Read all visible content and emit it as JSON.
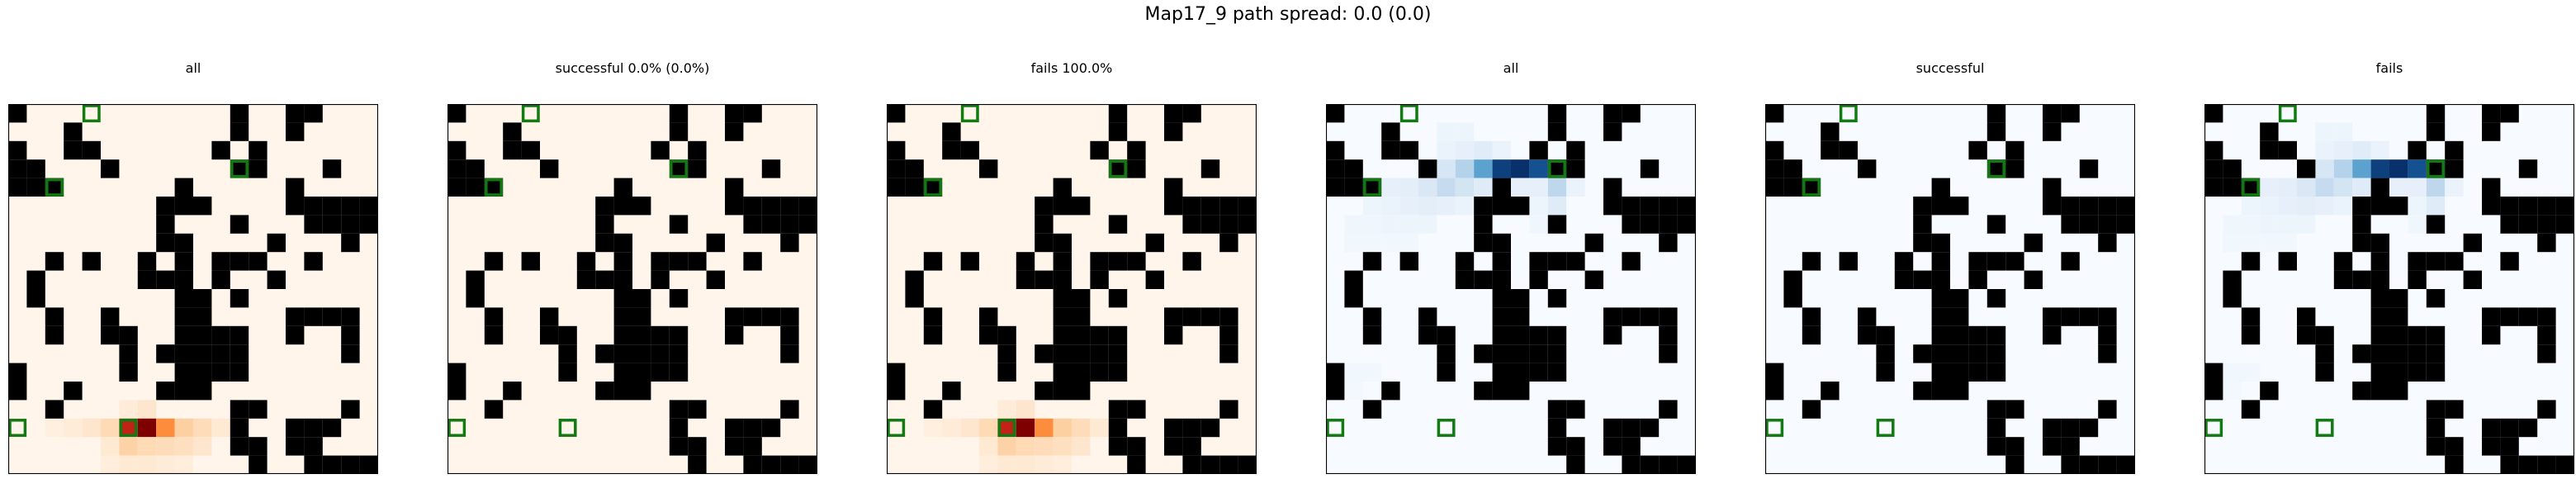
{
  "figure": {
    "title": "Map17_9 path spread: 0.0 (0.0)"
  },
  "colors": {
    "wall": "#000000",
    "marker": "#117a11",
    "oranges_low": "#fff5eb",
    "oranges_high": "#7f0000",
    "blues_low": "#f7fbff",
    "blues_high": "#08306b"
  },
  "chart_data": {
    "type": "heatmap",
    "grid_size": 20,
    "walls": [
      [
        0,
        0
      ],
      [
        0,
        12
      ],
      [
        0,
        15
      ],
      [
        0,
        16
      ],
      [
        1,
        3
      ],
      [
        1,
        12
      ],
      [
        1,
        15
      ],
      [
        2,
        0
      ],
      [
        2,
        3
      ],
      [
        2,
        4
      ],
      [
        2,
        11
      ],
      [
        2,
        13
      ],
      [
        3,
        0
      ],
      [
        3,
        1
      ],
      [
        3,
        5
      ],
      [
        3,
        12
      ],
      [
        3,
        13
      ],
      [
        3,
        17
      ],
      [
        4,
        0
      ],
      [
        4,
        1
      ],
      [
        4,
        2
      ],
      [
        4,
        9
      ],
      [
        4,
        15
      ],
      [
        5,
        8
      ],
      [
        5,
        9
      ],
      [
        5,
        10
      ],
      [
        5,
        15
      ],
      [
        5,
        16
      ],
      [
        5,
        17
      ],
      [
        5,
        18
      ],
      [
        5,
        19
      ],
      [
        6,
        8
      ],
      [
        6,
        12
      ],
      [
        6,
        16
      ],
      [
        6,
        17
      ],
      [
        6,
        18
      ],
      [
        6,
        19
      ],
      [
        7,
        8
      ],
      [
        7,
        9
      ],
      [
        7,
        14
      ],
      [
        7,
        18
      ],
      [
        8,
        2
      ],
      [
        8,
        4
      ],
      [
        8,
        7
      ],
      [
        8,
        9
      ],
      [
        8,
        11
      ],
      [
        8,
        12
      ],
      [
        8,
        13
      ],
      [
        8,
        16
      ],
      [
        9,
        1
      ],
      [
        9,
        7
      ],
      [
        9,
        8
      ],
      [
        9,
        9
      ],
      [
        9,
        11
      ],
      [
        9,
        14
      ],
      [
        10,
        1
      ],
      [
        10,
        9
      ],
      [
        10,
        10
      ],
      [
        10,
        12
      ],
      [
        11,
        2
      ],
      [
        11,
        5
      ],
      [
        11,
        9
      ],
      [
        11,
        10
      ],
      [
        11,
        15
      ],
      [
        11,
        16
      ],
      [
        11,
        17
      ],
      [
        11,
        18
      ],
      [
        12,
        2
      ],
      [
        12,
        5
      ],
      [
        12,
        6
      ],
      [
        12,
        9
      ],
      [
        12,
        10
      ],
      [
        12,
        11
      ],
      [
        12,
        12
      ],
      [
        12,
        15
      ],
      [
        12,
        18
      ],
      [
        13,
        6
      ],
      [
        13,
        8
      ],
      [
        13,
        9
      ],
      [
        13,
        10
      ],
      [
        13,
        11
      ],
      [
        13,
        12
      ],
      [
        13,
        18
      ],
      [
        14,
        0
      ],
      [
        14,
        6
      ],
      [
        14,
        9
      ],
      [
        14,
        10
      ],
      [
        14,
        11
      ],
      [
        14,
        12
      ],
      [
        15,
        0
      ],
      [
        15,
        3
      ],
      [
        15,
        8
      ],
      [
        15,
        9
      ],
      [
        15,
        10
      ],
      [
        16,
        2
      ],
      [
        16,
        12
      ],
      [
        16,
        13
      ],
      [
        16,
        18
      ],
      [
        17,
        12
      ],
      [
        17,
        15
      ],
      [
        17,
        16
      ],
      [
        17,
        17
      ],
      [
        18,
        12
      ],
      [
        18,
        13
      ],
      [
        18,
        15
      ],
      [
        18,
        16
      ],
      [
        19,
        13
      ],
      [
        19,
        16
      ],
      [
        19,
        17
      ],
      [
        19,
        18
      ],
      [
        19,
        19
      ]
    ],
    "markers": [
      [
        0,
        4
      ],
      [
        4,
        2
      ],
      [
        3,
        12
      ],
      [
        17,
        0
      ],
      [
        17,
        6
      ]
    ],
    "panels": [
      {
        "title": "all",
        "colormap": "oranges",
        "heat": [
          [
            16,
            6,
            0.08
          ],
          [
            16,
            7,
            0.12
          ],
          [
            17,
            2,
            0.05
          ],
          [
            17,
            3,
            0.08
          ],
          [
            17,
            4,
            0.12
          ],
          [
            17,
            5,
            0.22
          ],
          [
            17,
            6,
            0.85
          ],
          [
            17,
            7,
            1.0
          ],
          [
            17,
            8,
            0.55
          ],
          [
            17,
            9,
            0.3
          ],
          [
            17,
            10,
            0.2
          ],
          [
            17,
            11,
            0.1
          ],
          [
            18,
            5,
            0.1
          ],
          [
            18,
            6,
            0.28
          ],
          [
            18,
            7,
            0.22
          ],
          [
            18,
            8,
            0.2
          ],
          [
            18,
            9,
            0.18
          ],
          [
            18,
            10,
            0.12
          ],
          [
            19,
            5,
            0.06
          ],
          [
            19,
            6,
            0.1
          ],
          [
            19,
            7,
            0.1
          ],
          [
            19,
            8,
            0.08
          ],
          [
            19,
            9,
            0.06
          ]
        ]
      },
      {
        "title": "successful 0.0% (0.0%)",
        "colormap": "oranges",
        "heat": []
      },
      {
        "title": "fails 100.0%",
        "colormap": "oranges",
        "heat": [
          [
            16,
            6,
            0.08
          ],
          [
            16,
            7,
            0.12
          ],
          [
            17,
            2,
            0.05
          ],
          [
            17,
            3,
            0.08
          ],
          [
            17,
            4,
            0.12
          ],
          [
            17,
            5,
            0.22
          ],
          [
            17,
            6,
            0.85
          ],
          [
            17,
            7,
            1.0
          ],
          [
            17,
            8,
            0.55
          ],
          [
            17,
            9,
            0.3
          ],
          [
            17,
            10,
            0.2
          ],
          [
            17,
            11,
            0.1
          ],
          [
            18,
            5,
            0.1
          ],
          [
            18,
            6,
            0.28
          ],
          [
            18,
            7,
            0.22
          ],
          [
            18,
            8,
            0.2
          ],
          [
            18,
            9,
            0.18
          ],
          [
            18,
            10,
            0.12
          ],
          [
            19,
            5,
            0.06
          ],
          [
            19,
            6,
            0.1
          ],
          [
            19,
            7,
            0.1
          ],
          [
            19,
            8,
            0.08
          ],
          [
            19,
            9,
            0.06
          ]
        ]
      },
      {
        "title": "all",
        "colormap": "blues",
        "heat": [
          [
            1,
            6,
            0.06
          ],
          [
            1,
            7,
            0.06
          ],
          [
            2,
            6,
            0.08
          ],
          [
            2,
            7,
            0.1
          ],
          [
            2,
            8,
            0.14
          ],
          [
            2,
            9,
            0.08
          ],
          [
            3,
            6,
            0.2
          ],
          [
            3,
            7,
            0.35
          ],
          [
            3,
            8,
            0.6
          ],
          [
            3,
            9,
            0.95
          ],
          [
            3,
            10,
            1.0
          ],
          [
            3,
            11,
            0.9
          ],
          [
            3,
            12,
            0.5
          ],
          [
            4,
            3,
            0.1
          ],
          [
            4,
            4,
            0.12
          ],
          [
            4,
            5,
            0.18
          ],
          [
            4,
            6,
            0.3
          ],
          [
            4,
            7,
            0.22
          ],
          [
            4,
            8,
            0.15
          ],
          [
            4,
            10,
            0.1
          ],
          [
            4,
            11,
            0.1
          ],
          [
            4,
            12,
            0.32
          ],
          [
            4,
            13,
            0.08
          ],
          [
            5,
            2,
            0.06
          ],
          [
            5,
            3,
            0.08
          ],
          [
            5,
            4,
            0.1
          ],
          [
            5,
            5,
            0.12
          ],
          [
            5,
            6,
            0.1
          ],
          [
            5,
            7,
            0.08
          ],
          [
            5,
            11,
            0.06
          ],
          [
            5,
            12,
            0.15
          ],
          [
            6,
            1,
            0.05
          ],
          [
            6,
            2,
            0.05
          ],
          [
            6,
            3,
            0.06
          ],
          [
            6,
            4,
            0.06
          ],
          [
            6,
            5,
            0.06
          ],
          [
            6,
            11,
            0.05
          ],
          [
            6,
            12,
            0.08
          ],
          [
            7,
            1,
            0.04
          ],
          [
            7,
            2,
            0.04
          ],
          [
            7,
            3,
            0.04
          ],
          [
            7,
            4,
            0.04
          ],
          [
            14,
            1,
            0.04
          ],
          [
            14,
            2,
            0.04
          ],
          [
            15,
            1,
            0.03
          ]
        ]
      },
      {
        "title": "successful",
        "colormap": "blues",
        "heat": []
      },
      {
        "title": "fails",
        "colormap": "blues",
        "heat": [
          [
            1,
            6,
            0.06
          ],
          [
            1,
            7,
            0.06
          ],
          [
            2,
            6,
            0.08
          ],
          [
            2,
            7,
            0.1
          ],
          [
            2,
            8,
            0.14
          ],
          [
            2,
            9,
            0.08
          ],
          [
            3,
            6,
            0.2
          ],
          [
            3,
            7,
            0.35
          ],
          [
            3,
            8,
            0.6
          ],
          [
            3,
            9,
            0.95
          ],
          [
            3,
            10,
            1.0
          ],
          [
            3,
            11,
            0.9
          ],
          [
            3,
            12,
            0.5
          ],
          [
            4,
            3,
            0.1
          ],
          [
            4,
            4,
            0.12
          ],
          [
            4,
            5,
            0.18
          ],
          [
            4,
            6,
            0.3
          ],
          [
            4,
            7,
            0.22
          ],
          [
            4,
            8,
            0.15
          ],
          [
            4,
            10,
            0.1
          ],
          [
            4,
            11,
            0.1
          ],
          [
            4,
            12,
            0.32
          ],
          [
            4,
            13,
            0.08
          ],
          [
            5,
            2,
            0.06
          ],
          [
            5,
            3,
            0.08
          ],
          [
            5,
            4,
            0.1
          ],
          [
            5,
            5,
            0.12
          ],
          [
            5,
            6,
            0.1
          ],
          [
            5,
            7,
            0.08
          ],
          [
            5,
            11,
            0.06
          ],
          [
            5,
            12,
            0.15
          ],
          [
            6,
            1,
            0.05
          ],
          [
            6,
            2,
            0.05
          ],
          [
            6,
            3,
            0.06
          ],
          [
            6,
            4,
            0.06
          ],
          [
            6,
            5,
            0.06
          ],
          [
            6,
            11,
            0.05
          ],
          [
            6,
            12,
            0.08
          ],
          [
            7,
            1,
            0.04
          ],
          [
            7,
            2,
            0.04
          ],
          [
            7,
            3,
            0.04
          ],
          [
            7,
            4,
            0.04
          ],
          [
            14,
            1,
            0.04
          ],
          [
            14,
            2,
            0.04
          ],
          [
            15,
            1,
            0.03
          ]
        ]
      }
    ]
  }
}
